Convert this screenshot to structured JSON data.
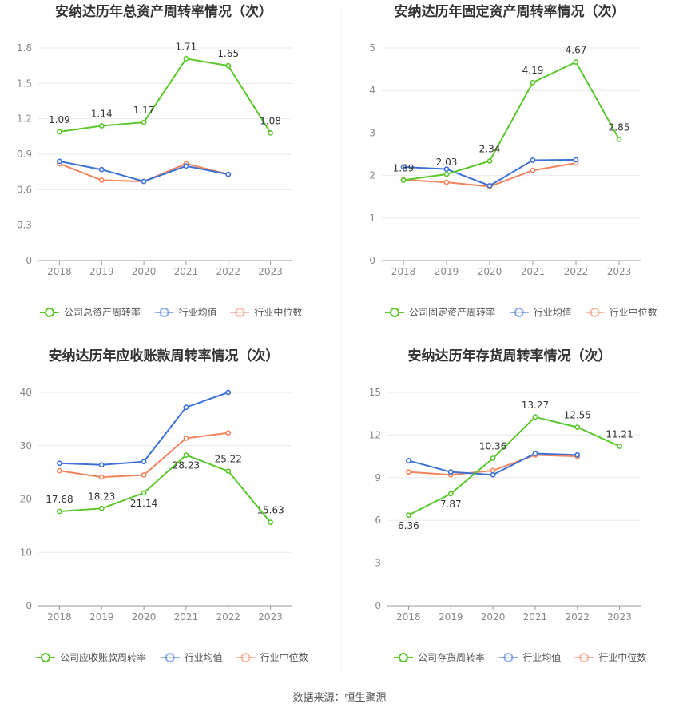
{
  "source": "数据来源：恒生聚源",
  "colors": {
    "company": "#5ac72b",
    "avg": "#3a72d8",
    "median": "#f2845c"
  },
  "chart_data": [
    {
      "type": "line",
      "title": "安纳达历年总资产周转率情况（次）",
      "categories": [
        "2018",
        "2019",
        "2020",
        "2021",
        "2022",
        "2023"
      ],
      "yticks": [
        "0",
        "0.3",
        "0.6",
        "0.9",
        "1.2",
        "1.5",
        "1.8"
      ],
      "ylim": [
        0,
        1.8
      ],
      "legend_position": "bottom",
      "series": [
        {
          "name": "公司总资产周转率",
          "key": "company",
          "values": [
            1.09,
            1.14,
            1.17,
            1.71,
            1.65,
            1.08
          ],
          "labels": [
            "1.09",
            "1.14",
            "1.17",
            "1.71",
            "1.65",
            "1.08"
          ]
        },
        {
          "name": "行业均值",
          "key": "avg",
          "values": [
            0.84,
            0.77,
            0.67,
            0.8,
            0.73,
            null
          ]
        },
        {
          "name": "行业中位数",
          "key": "median",
          "values": [
            0.82,
            0.68,
            0.67,
            0.82,
            0.73,
            null
          ]
        }
      ]
    },
    {
      "type": "line",
      "title": "安纳达历年固定资产周转率情况（次）",
      "categories": [
        "2018",
        "2019",
        "2020",
        "2021",
        "2022",
        "2023"
      ],
      "yticks": [
        "0",
        "1",
        "2",
        "3",
        "4",
        "5"
      ],
      "ylim": [
        0,
        5
      ],
      "legend_position": "bottom",
      "series": [
        {
          "name": "公司固定资产周转率",
          "key": "company",
          "values": [
            1.89,
            2.03,
            2.34,
            4.19,
            4.67,
            2.85
          ],
          "labels": [
            "1.89",
            "2.03",
            "2.34",
            "4.19",
            "4.67",
            "2.85"
          ]
        },
        {
          "name": "行业均值",
          "key": "avg",
          "values": [
            2.2,
            2.15,
            1.76,
            2.36,
            2.37,
            null
          ]
        },
        {
          "name": "行业中位数",
          "key": "median",
          "values": [
            1.9,
            1.84,
            1.74,
            2.12,
            2.29,
            null
          ]
        }
      ]
    },
    {
      "type": "line",
      "title": "安纳达历年应收账款周转率情况（次）",
      "categories": [
        "2018",
        "2019",
        "2020",
        "2021",
        "2022",
        "2023"
      ],
      "yticks": [
        "0",
        "10",
        "20",
        "30",
        "40"
      ],
      "ylim": [
        0,
        40
      ],
      "legend_position": "bottom",
      "series": [
        {
          "name": "公司应收账款周转率",
          "key": "company",
          "values": [
            17.68,
            18.23,
            21.14,
            28.23,
            25.22,
            15.63
          ],
          "labels": [
            "17.68",
            "18.23",
            "21.14",
            "28.23",
            "25.22",
            "15.63"
          ]
        },
        {
          "name": "行业均值",
          "key": "avg",
          "values": [
            26.7,
            26.4,
            27.0,
            37.2,
            40.0,
            null
          ]
        },
        {
          "name": "行业中位数",
          "key": "median",
          "values": [
            25.3,
            24.1,
            24.5,
            31.4,
            32.4,
            null
          ]
        }
      ]
    },
    {
      "type": "line",
      "title": "安纳达历年存货周转率情况（次）",
      "categories": [
        "2018",
        "2019",
        "2020",
        "2021",
        "2022",
        "2023"
      ],
      "yticks": [
        "0",
        "3",
        "6",
        "9",
        "12",
        "15"
      ],
      "ylim": [
        0,
        15
      ],
      "legend_position": "bottom",
      "series": [
        {
          "name": "公司存货周转率",
          "key": "company",
          "values": [
            6.36,
            7.87,
            10.36,
            13.27,
            12.55,
            11.21
          ],
          "labels": [
            "6.36",
            "7.87",
            "10.36",
            "13.27",
            "12.55",
            "11.21"
          ]
        },
        {
          "name": "行业均值",
          "key": "avg",
          "values": [
            10.2,
            9.4,
            9.2,
            10.7,
            10.6,
            null
          ]
        },
        {
          "name": "行业中位数",
          "key": "median",
          "values": [
            9.4,
            9.2,
            9.5,
            10.6,
            10.5,
            null
          ]
        }
      ]
    }
  ]
}
